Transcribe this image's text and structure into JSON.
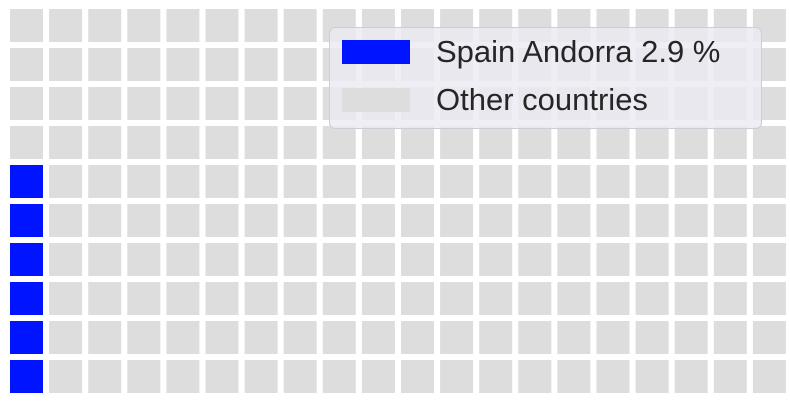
{
  "chart_data": {
    "type": "waffle",
    "rows": 10,
    "columns": 20,
    "total_cells": 200,
    "series": [
      {
        "name": "Spain  Andorra 2.9 %",
        "cells": 6,
        "color": "#0014ff"
      },
      {
        "name": "Other countries",
        "cells": 194,
        "color": "#dddddd"
      }
    ],
    "fill_order": "column-major, bottom-up from left",
    "legend_position": "top-right",
    "grid": false
  }
}
